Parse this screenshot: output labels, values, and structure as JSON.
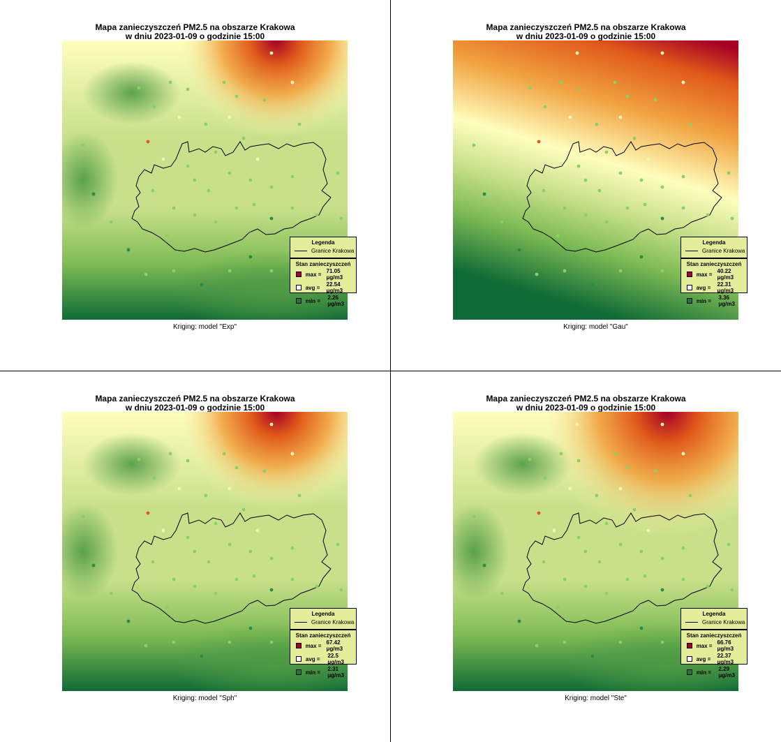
{
  "panels": [
    {
      "id": "exp",
      "title_line1": "Mapa zanieczyszczeń PM2.5 na obszarze Krakowa",
      "title_line2": "w dniu 2023-01-09 o godzinie 15:00",
      "caption": "Kriging: model \"Exp\"",
      "legend_title": "Legenda",
      "legend_boundary_label": "Granice Krakowa",
      "stats_title": "Stan zanieczyszczeń",
      "max_label": "max =",
      "max_value": "71.05 μg/m3",
      "avg_label": "avg =",
      "avg_value": "22.54 μg/m3",
      "min_label": "min =",
      "min_value": "2.26 μg/m3",
      "surface": "radial-north"
    },
    {
      "id": "gau",
      "title_line1": "Mapa zanieczyszczeń PM2.5 na obszarze Krakowa",
      "title_line2": "w dniu 2023-01-09 o godzinie 15:00",
      "caption": "Kriging: model \"Gau\"",
      "legend_title": "Legenda",
      "legend_boundary_label": "Granice Krakowa",
      "stats_title": "Stan zanieczyszczeń",
      "max_label": "max =",
      "max_value": "40.22 μg/m3",
      "avg_label": "avg =",
      "avg_value": "22.31 μg/m3",
      "min_label": "min =",
      "min_value": "3.36 μg/m3",
      "surface": "gradient-north"
    },
    {
      "id": "sph",
      "title_line1": "Mapa zanieczyszczeń PM2.5 na obszarze Krakowa",
      "title_line2": "w dniu 2023-01-09 o godzinie 15:00",
      "caption": "Kriging: model \"Sph\"",
      "legend_title": "Legenda",
      "legend_boundary_label": "Granice Krakowa",
      "stats_title": "Stan zanieczyszczeń",
      "max_label": "max =",
      "max_value": "67.42 μg/m3",
      "avg_label": "avg =",
      "avg_value": "22.5 μg/m3",
      "min_label": "min =",
      "min_value": "2.31 μg/m3",
      "surface": "radial-north"
    },
    {
      "id": "ste",
      "title_line1": "Mapa zanieczyszczeń PM2.5 na obszarze Krakowa",
      "title_line2": "w dniu 2023-01-09 o godzinie 15:00",
      "caption": "Kriging: model \"Ste\"",
      "legend_title": "Legenda",
      "legend_boundary_label": "Granice Krakowa",
      "stats_title": "Stan zanieczyszczeń",
      "max_label": "max =",
      "max_value": "66.76 μg/m3",
      "avg_label": "avg =",
      "avg_value": "22.37 μg/m3",
      "min_label": "min =",
      "min_value": "2.29 μg/m3",
      "surface": "radial-north-soft"
    }
  ],
  "colors": {
    "max": "#a50026",
    "high": "#e05a1a",
    "mid_high": "#f1a340",
    "mid": "#fefebd",
    "low_mid": "#c8e08a",
    "low": "#7fbc55",
    "min": "#0f6b35",
    "legend_bg": "#e4ee9a"
  }
}
